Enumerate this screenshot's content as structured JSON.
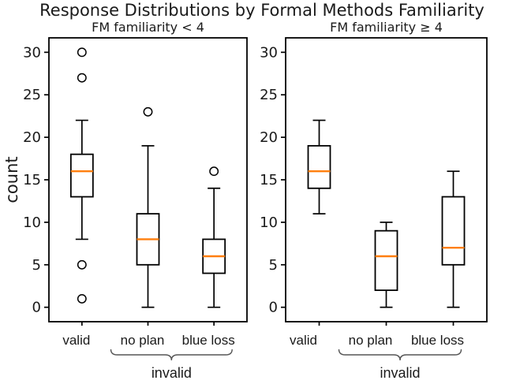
{
  "figure": {
    "title": "Response Distributions by Formal Methods Familiarity",
    "ylabel": "count"
  },
  "colors": {
    "median": "#ff7f0e",
    "box_line": "#000000",
    "text": "#1a1a1a",
    "annotation_text": "#2b2b2b",
    "brace": "#555555",
    "background": "#ffffff"
  },
  "chart_data": [
    {
      "type": "box",
      "title": "FM familiarity < 4",
      "ylabel": "count",
      "categories": [
        "valid",
        "no plan",
        "blue loss"
      ],
      "yticks": [
        0,
        5,
        10,
        15,
        20,
        25,
        30
      ],
      "ylim": [
        -1.7,
        31.7
      ],
      "grid": false,
      "boxes": [
        {
          "category": "valid",
          "whislo": 8,
          "q1": 13,
          "med": 16,
          "q3": 18,
          "whishi": 22,
          "fliers": [
            1,
            5,
            27,
            30
          ]
        },
        {
          "category": "no plan",
          "whislo": 0,
          "q1": 5,
          "med": 8,
          "q3": 11,
          "whishi": 19,
          "fliers": [
            23
          ]
        },
        {
          "category": "blue loss",
          "whislo": 0,
          "q1": 4,
          "med": 6,
          "q3": 8,
          "whishi": 14,
          "fliers": [
            16
          ]
        }
      ],
      "annotation": {
        "label": "invalid",
        "span": [
          "no plan",
          "blue loss"
        ]
      }
    },
    {
      "type": "box",
      "title": "FM familiarity ≥ 4",
      "ylabel": "",
      "categories": [
        "valid",
        "no plan",
        "blue loss"
      ],
      "yticks": [
        0,
        5,
        10,
        15,
        20,
        25,
        30
      ],
      "ylim": [
        -1.7,
        31.7
      ],
      "grid": false,
      "boxes": [
        {
          "category": "valid",
          "whislo": 11,
          "q1": 14,
          "med": 16,
          "q3": 19,
          "whishi": 22,
          "fliers": []
        },
        {
          "category": "no plan",
          "whislo": 0,
          "q1": 2,
          "med": 6,
          "q3": 9,
          "whishi": 10,
          "fliers": []
        },
        {
          "category": "blue loss",
          "whislo": 0,
          "q1": 5,
          "med": 7,
          "q3": 13,
          "whishi": 16,
          "fliers": []
        }
      ],
      "annotation": {
        "label": "invalid",
        "span": [
          "no plan",
          "blue loss"
        ]
      }
    }
  ]
}
